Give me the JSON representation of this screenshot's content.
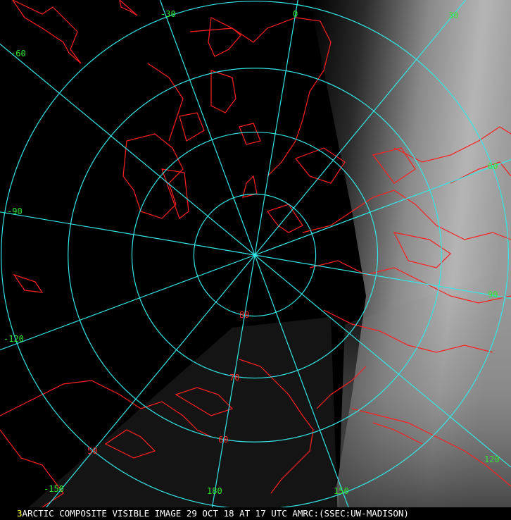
{
  "map": {
    "projection": "polar stereographic (north pole)",
    "colors": {
      "grid": "#33e6e6",
      "coastline": "#ff2020",
      "longitude_label": "#33e633",
      "latitude_label": "#ff2a2a",
      "background": "#000000"
    },
    "longitude_labels": [
      "-30",
      "0",
      "30",
      "-60",
      "60",
      "-90",
      "90",
      "-120",
      "120",
      "-150",
      "180",
      "150"
    ],
    "latitude_labels": [
      "80",
      "70",
      "60",
      "50"
    ]
  },
  "caption": {
    "frame_number": "3",
    "text": "ARCTIC COMPOSITE VISIBLE IMAGE 29 OCT 18 AT 17 UTC AMRC:(SSEC:UW-MADISON)"
  }
}
